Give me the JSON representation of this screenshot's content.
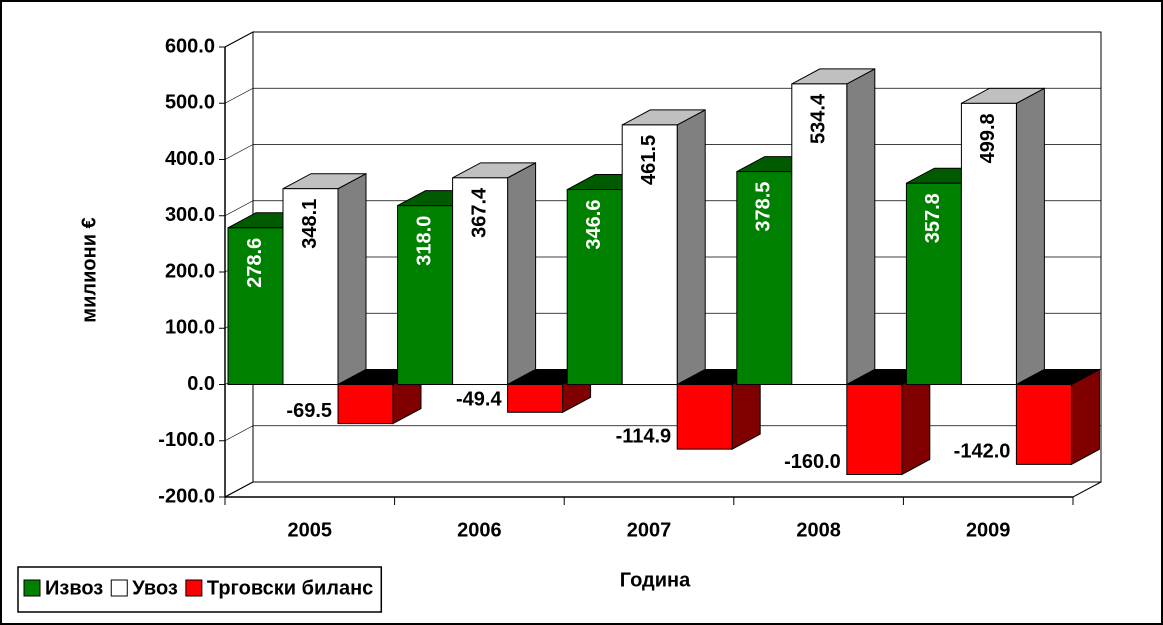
{
  "chart_data": {
    "type": "bar3d",
    "categories": [
      "2005",
      "2006",
      "2007",
      "2008",
      "2009"
    ],
    "x_label": "Година",
    "y_label": "милиони €",
    "series": [
      {
        "name": "Извоз",
        "color": "#008000",
        "values": [
          278.6,
          318.0,
          346.6,
          378.5,
          357.8
        ],
        "value_labels": [
          "278.6",
          "318.0",
          "346.6",
          "378.5",
          "357.8"
        ]
      },
      {
        "name": "Увоз",
        "color": "#ffffff",
        "values": [
          348.1,
          367.4,
          461.5,
          534.4,
          499.8
        ],
        "value_labels": [
          "348.1",
          "367.4",
          "461.5",
          "534.4",
          "499.8"
        ]
      },
      {
        "name": "Трговски биланс",
        "color": "#ff0000",
        "values": [
          -69.5,
          -49.4,
          -114.9,
          -160.0,
          -142.0
        ],
        "value_labels": [
          "-69.5",
          "-49.4",
          "-114.9",
          "-160.0",
          "-142.0"
        ]
      }
    ],
    "ylim": [
      -200,
      600
    ],
    "yticks": [
      {
        "value": -200,
        "label": "-200.0"
      },
      {
        "value": -100,
        "label": "-100.0"
      },
      {
        "value": 0,
        "label": "0.0"
      },
      {
        "value": 100,
        "label": "100.0"
      },
      {
        "value": 200,
        "label": "200.0"
      },
      {
        "value": 300,
        "label": "300.0"
      },
      {
        "value": 400,
        "label": "400.0"
      },
      {
        "value": 500,
        "label": "500.0"
      },
      {
        "value": 600,
        "label": "600.0"
      }
    ],
    "grid": true,
    "legend": "bottom-left"
  }
}
